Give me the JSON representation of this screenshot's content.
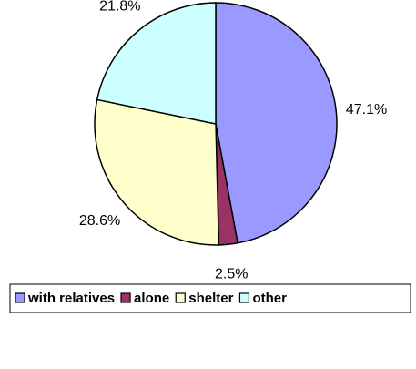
{
  "chart_data": {
    "type": "pie",
    "categories": [
      "with relatives",
      "alone",
      "shelter",
      "other"
    ],
    "values": [
      47.1,
      2.5,
      28.6,
      21.8
    ],
    "value_labels": [
      "47.1%",
      "2.5%",
      "28.6%",
      "21.8%"
    ],
    "colors": [
      "#9999ff",
      "#993366",
      "#ffffcc",
      "#ccffff"
    ],
    "legend": "bottom"
  }
}
